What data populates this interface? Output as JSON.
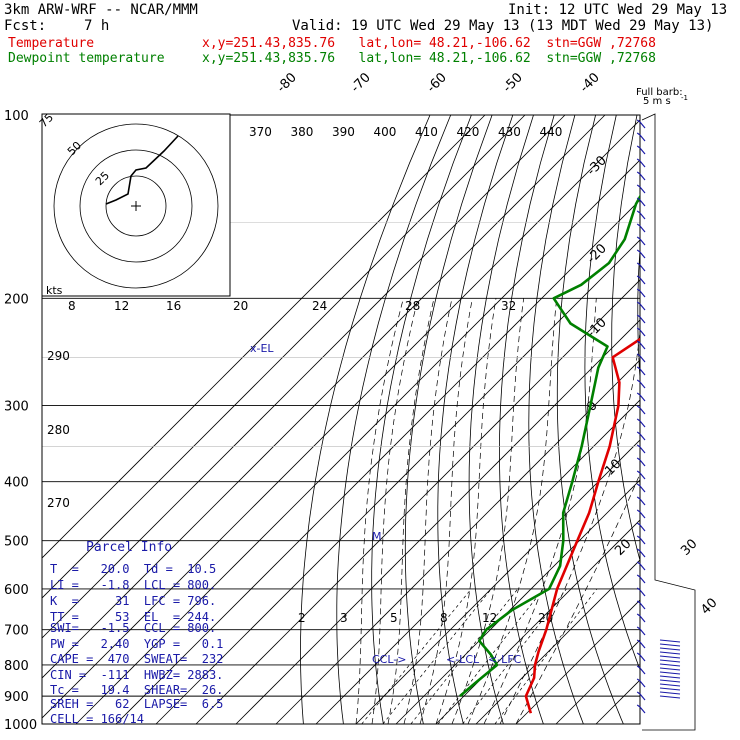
{
  "header": {
    "model": "3km ARW-WRF -- NCAR/MMM",
    "init": "Init: 12 UTC Wed 29 May 13",
    "fcst_label": "Fcst:",
    "fcst_value": "7 h",
    "valid": "Valid: 19 UTC Wed 29 May 13 (13 MDT Wed 29 May 13)"
  },
  "legend": [
    {
      "name": "Temperature",
      "info": "x,y=251.43,835.76   lat,lon= 48.21,-106.62  stn=GGW ,72768",
      "color": "#e00000"
    },
    {
      "name": "Dewpoint temperature",
      "info": "x,y=251.43,835.76   lat,lon= 48.21,-106.62  stn=GGW ,72768",
      "color": "#008000"
    }
  ],
  "chart_data": {
    "type": "line",
    "yscale": "log-pressure",
    "ylim_hpa": [
      1000,
      100
    ],
    "pressure_labels": [
      "100",
      "200",
      "300",
      "400",
      "500",
      "600",
      "700",
      "800",
      "900",
      "1000"
    ],
    "temp_ticks_c": [
      "-80",
      "-70",
      "-60",
      "-50",
      "-40",
      "-30",
      "-20",
      "-10",
      "0",
      "10",
      "20",
      "30",
      "40"
    ],
    "theta_labels": [
      "370",
      "380",
      "390",
      "400",
      "410",
      "420",
      "430",
      "440"
    ],
    "theta_left_labels": [
      "290",
      "280",
      "270"
    ],
    "mixing_ratio_labels": [
      "2",
      "3",
      "5",
      "8",
      "12",
      "20"
    ],
    "series": [
      {
        "name": "Temperature",
        "color": "#e00000",
        "points": [
          [
            960,
            31.0
          ],
          [
            900,
            25.5
          ],
          [
            840,
            23.0
          ],
          [
            800,
            20.0
          ],
          [
            760,
            17.5
          ],
          [
            700,
            14.0
          ],
          [
            600,
            6.5
          ],
          [
            500,
            -0.5
          ],
          [
            450,
            -4.5
          ],
          [
            400,
            -10.0
          ],
          [
            350,
            -16.0
          ],
          [
            300,
            -24.0
          ],
          [
            275,
            -29.5
          ],
          [
            250,
            -37.5
          ],
          [
            225,
            -34.0
          ],
          [
            200,
            -38.0
          ],
          [
            170,
            -43.5
          ],
          [
            150,
            -44.5
          ],
          [
            125,
            -48.0
          ],
          [
            100,
            -52.5
          ]
        ]
      },
      {
        "name": "Dewpoint temperature",
        "color": "#008000",
        "points": [
          [
            900,
            9.0
          ],
          [
            860,
            9.5
          ],
          [
            800,
            10.5
          ],
          [
            770,
            6.5
          ],
          [
            730,
            0.0
          ],
          [
            700,
            -1.0
          ],
          [
            650,
            0.5
          ],
          [
            600,
            4.5
          ],
          [
            550,
            1.5
          ],
          [
            500,
            -4.0
          ],
          [
            450,
            -11.0
          ],
          [
            400,
            -16.5
          ],
          [
            350,
            -23.0
          ],
          [
            300,
            -31.0
          ],
          [
            260,
            -38.5
          ],
          [
            240,
            -41.5
          ],
          [
            220,
            -56.5
          ],
          [
            200,
            -67.0
          ],
          [
            190,
            -63.5
          ],
          [
            175,
            -62.0
          ],
          [
            160,
            -64.0
          ],
          [
            140,
            -70.0
          ],
          [
            120,
            -74.5
          ],
          [
            100,
            -80.0
          ]
        ]
      }
    ],
    "level_markers": [
      {
        "text": "x-EL",
        "p": 244
      },
      {
        "text": "M",
        "p": 498
      },
      {
        "text": "CCL->",
        "p": 800
      },
      {
        "text": "<-LCL",
        "p": 800
      },
      {
        "text": "<-LFC",
        "p": 796
      }
    ]
  },
  "hodograph": {
    "units_label": "kts",
    "ring_labels": [
      "25",
      "50",
      "75"
    ],
    "speed_scale": [
      "8",
      "12",
      "16",
      "20",
      "24",
      "28",
      "32"
    ]
  },
  "wind_barbs": {
    "title": "Full barb:",
    "subtitle": "5 m s",
    "superscript": "-1"
  },
  "parcel": {
    "title": "Parcel Info",
    "rows": [
      "T  =   20.0  Td =  10.5",
      "LI =   -1.8  LCL = 800.",
      "K  =     31  LFC = 796.",
      "TT =     53  EL  = 244.",
      "SWI=   -1.5  CCL = 800.",
      "PW =   2.40  YGP =   0.1",
      "CAPE =  470  SWEAT=  232",
      "CIN =  -111  HWBZ= 2883.",
      "Tc =   19.4  SHEAR=  26.",
      "SREH =   62  LAPSE=  6.5",
      "CELL = 166/14"
    ]
  },
  "colors": {
    "temperature": "#e00000",
    "dewpoint": "#008000",
    "barbs": "#1a1aa8",
    "grid": "#000000"
  }
}
